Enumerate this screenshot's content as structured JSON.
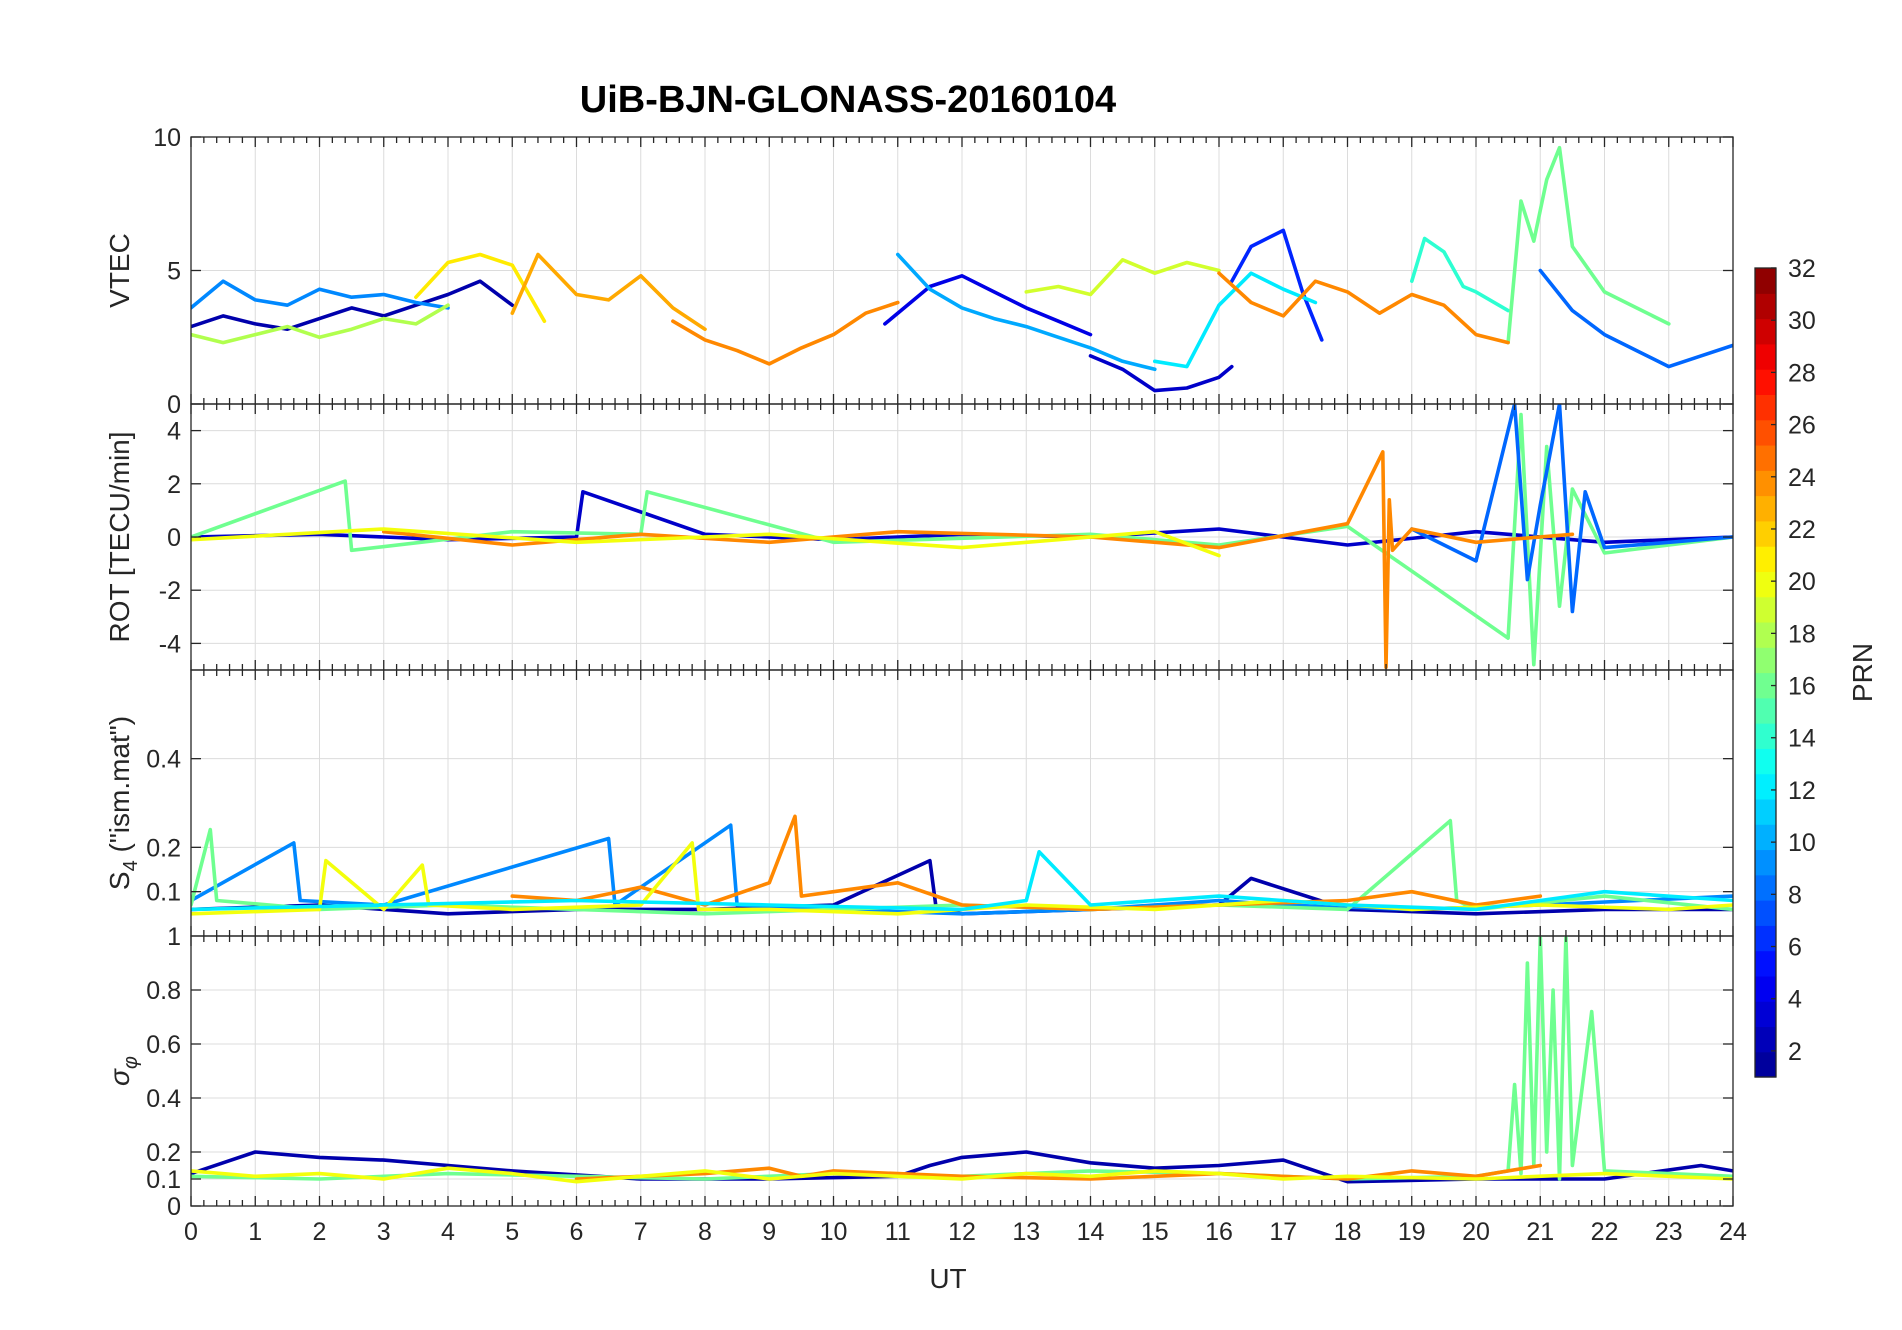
{
  "chart_data": {
    "type": "line",
    "title": "UiB-BJN-GLONASS-20160104",
    "xlabel": "UT",
    "xlim": [
      0,
      24
    ],
    "xticks": [
      0,
      1,
      2,
      3,
      4,
      5,
      6,
      7,
      8,
      9,
      10,
      11,
      12,
      13,
      14,
      15,
      16,
      17,
      18,
      19,
      20,
      21,
      22,
      23,
      24
    ],
    "colorbar": {
      "label": "PRN",
      "range": [
        1,
        32
      ],
      "ticks": [
        2,
        4,
        6,
        8,
        10,
        12,
        14,
        16,
        18,
        20,
        22,
        24,
        26,
        28,
        30,
        32
      ],
      "colormap": [
        "#00008F",
        "#0000FF",
        "#0080FF",
        "#00FFFF",
        "#80FF80",
        "#FFFF00",
        "#FF8000",
        "#FF0000",
        "#800000"
      ]
    },
    "panels": [
      {
        "id": "vtec",
        "ylabel": "VTEC",
        "ylim": [
          0,
          10
        ],
        "yticks": [
          0,
          5,
          10
        ],
        "ytick_labels": [
          "0",
          "5",
          "10"
        ],
        "series": [
          {
            "prn": 2,
            "x": [
              0,
              0.5,
              1,
              1.5,
              2,
              2.5,
              3,
              3.5,
              4,
              4.5,
              5
            ],
            "y": [
              2.9,
              3.3,
              3.0,
              2.8,
              3.2,
              3.6,
              3.3,
              3.7,
              4.1,
              4.6,
              3.7
            ]
          },
          {
            "prn": 4,
            "x": [
              10.8,
              11.5,
              12,
              12.5,
              13,
              13.5,
              14
            ],
            "y": [
              3.0,
              4.4,
              4.8,
              4.2,
              3.6,
              3.1,
              2.6
            ]
          },
          {
            "prn": 3,
            "x": [
              14,
              14.5,
              15,
              15.5,
              16,
              16.2
            ],
            "y": [
              1.8,
              1.3,
              0.5,
              0.6,
              1.0,
              1.4
            ]
          },
          {
            "prn": 6,
            "x": [
              16.2,
              16.5,
              17,
              17.3,
              17.6
            ],
            "y": [
              4.6,
              5.9,
              6.5,
              4.2,
              2.4
            ]
          },
          {
            "prn": 9,
            "x": [
              0,
              0.5,
              1,
              1.5,
              2,
              2.5,
              3,
              3.5,
              4
            ],
            "y": [
              3.6,
              4.6,
              3.9,
              3.7,
              4.3,
              4.0,
              4.1,
              3.8,
              3.6
            ]
          },
          {
            "prn": 8,
            "x": [
              21,
              21.5,
              22,
              22.5,
              23,
              23.5,
              24
            ],
            "y": [
              5.0,
              3.5,
              2.6,
              2.0,
              1.4,
              1.8,
              2.2
            ]
          },
          {
            "prn": 10,
            "x": [
              11,
              11.5,
              12,
              12.5,
              13,
              13.5,
              14,
              14.5,
              15
            ],
            "y": [
              5.6,
              4.3,
              3.6,
              3.2,
              2.9,
              2.5,
              2.1,
              1.6,
              1.3
            ]
          },
          {
            "prn": 12,
            "x": [
              15,
              15.5,
              16,
              16.5,
              17,
              17.5
            ],
            "y": [
              1.6,
              1.4,
              3.7,
              4.9,
              4.3,
              3.8
            ]
          },
          {
            "prn": 14,
            "x": [
              19,
              19.2,
              19.5,
              19.8,
              20,
              20.5
            ],
            "y": [
              4.6,
              6.2,
              5.7,
              4.4,
              4.2,
              3.5
            ]
          },
          {
            "prn": 16,
            "x": [
              20.5,
              20.7,
              20.9,
              21.1,
              21.3,
              21.5,
              22,
              22.5,
              23
            ],
            "y": [
              2.3,
              7.6,
              6.1,
              8.4,
              9.6,
              5.9,
              4.2,
              3.6,
              3.0
            ]
          },
          {
            "prn": 18,
            "x": [
              0,
              0.5,
              1,
              1.5,
              2,
              2.5,
              3,
              3.5,
              4
            ],
            "y": [
              2.6,
              2.3,
              2.6,
              2.9,
              2.5,
              2.8,
              3.2,
              3.0,
              3.7
            ]
          },
          {
            "prn": 19,
            "x": [
              13,
              13.5,
              14,
              14.5,
              15,
              15.5,
              16
            ],
            "y": [
              4.2,
              4.4,
              4.1,
              5.4,
              4.9,
              5.3,
              5.0
            ]
          },
          {
            "prn": 21,
            "x": [
              3.5,
              4,
              4.5,
              5,
              5.5
            ],
            "y": [
              4.0,
              5.3,
              5.6,
              5.2,
              3.1
            ]
          },
          {
            "prn": 23,
            "x": [
              5,
              5.4,
              6,
              6.5,
              7,
              7.5,
              8
            ],
            "y": [
              3.4,
              5.6,
              4.1,
              3.9,
              4.8,
              3.6,
              2.8
            ]
          },
          {
            "prn": 24,
            "x": [
              7.5,
              8,
              8.5,
              9,
              9.5,
              10,
              10.5,
              11
            ],
            "y": [
              3.1,
              2.4,
              2.0,
              1.5,
              2.1,
              2.6,
              3.4,
              3.8
            ]
          },
          {
            "prn": 24,
            "x": [
              16,
              16.5,
              17,
              17.5,
              18,
              18.5,
              19,
              19.5,
              20,
              20.5
            ],
            "y": [
              4.9,
              3.8,
              3.3,
              4.6,
              4.2,
              3.4,
              4.1,
              3.7,
              2.6,
              2.3
            ]
          }
        ]
      },
      {
        "id": "rot",
        "ylabel": "ROT [TECU/min]",
        "ylim": [
          -5,
          5
        ],
        "yticks": [
          -4,
          -2,
          0,
          2,
          4
        ],
        "ytick_labels": [
          "-4",
          "-2",
          "0",
          "2",
          "4"
        ],
        "series": [
          {
            "prn": 3,
            "x": [
              0,
              2,
              4,
              6,
              6.1,
              8,
              10,
              12,
              14,
              16,
              18,
              20,
              22,
              24
            ],
            "y": [
              0.0,
              0.1,
              -0.1,
              0.0,
              1.7,
              0.1,
              -0.1,
              0.1,
              0.0,
              0.3,
              -0.3,
              0.2,
              -0.2,
              0.0
            ]
          },
          {
            "prn": 16,
            "x": [
              0,
              2.4,
              2.5,
              5,
              7,
              7.1,
              10,
              14,
              16,
              18,
              20.5,
              20.7,
              20.9,
              21.1,
              21.3,
              21.5,
              22,
              24
            ],
            "y": [
              0.0,
              2.1,
              -0.5,
              0.2,
              0.1,
              1.7,
              -0.2,
              0.1,
              -0.3,
              0.4,
              -3.8,
              4.6,
              -4.8,
              3.4,
              -2.6,
              1.8,
              -0.6,
              0.0
            ]
          },
          {
            "prn": 8,
            "x": [
              19,
              20,
              20.6,
              20.8,
              21,
              21.3,
              21.5,
              21.7,
              22,
              24
            ],
            "y": [
              0.3,
              -0.9,
              5.0,
              -1.6,
              1.2,
              5.0,
              -2.8,
              1.7,
              -0.4,
              0.0
            ]
          },
          {
            "prn": 24,
            "x": [
              3,
              5,
              7,
              9,
              11,
              14,
              16,
              18,
              18.55,
              18.6,
              18.65,
              18.7,
              19,
              20,
              21.5
            ],
            "y": [
              0.2,
              -0.3,
              0.1,
              -0.2,
              0.2,
              0.0,
              -0.4,
              0.5,
              3.2,
              -4.9,
              1.4,
              -0.5,
              0.3,
              -0.2,
              0.1
            ]
          },
          {
            "prn": 20,
            "x": [
              0,
              3,
              6,
              9,
              12,
              15,
              16
            ],
            "y": [
              -0.1,
              0.3,
              -0.2,
              0.1,
              -0.4,
              0.2,
              -0.7
            ]
          }
        ]
      },
      {
        "id": "s4",
        "ylabel": "S4 (\"ism.mat\")",
        "ylim": [
          0,
          0.6
        ],
        "yticks": [
          0.1,
          0.2,
          0.4
        ],
        "ytick_labels": [
          "0.1",
          "0.2",
          "0.4"
        ],
        "series": [
          {
            "prn": 2,
            "x": [
              0,
              2,
              4,
              6,
              8,
              10,
              11.5,
              11.6,
              12,
              14,
              16,
              16.5,
              18,
              20,
              22,
              24
            ],
            "y": [
              0.06,
              0.07,
              0.05,
              0.06,
              0.06,
              0.07,
              0.17,
              0.06,
              0.05,
              0.06,
              0.07,
              0.13,
              0.06,
              0.05,
              0.06,
              0.06
            ]
          },
          {
            "prn": 9,
            "x": [
              0,
              1.6,
              1.7,
              3,
              6.5,
              6.6,
              8.4,
              8.5,
              10,
              12,
              14,
              16,
              17,
              19,
              21,
              24
            ],
            "y": [
              0.08,
              0.21,
              0.08,
              0.07,
              0.22,
              0.07,
              0.25,
              0.07,
              0.06,
              0.05,
              0.06,
              0.08,
              0.07,
              0.06,
              0.07,
              0.09
            ]
          },
          {
            "prn": 16,
            "x": [
              0,
              0.3,
              0.4,
              2,
              4,
              6,
              8,
              10,
              12,
              14,
              16,
              18,
              19.6,
              19.7,
              20,
              22,
              24
            ],
            "y": [
              0.07,
              0.24,
              0.08,
              0.06,
              0.07,
              0.06,
              0.05,
              0.06,
              0.07,
              0.06,
              0.07,
              0.06,
              0.26,
              0.08,
              0.06,
              0.09,
              0.06
            ]
          },
          {
            "prn": 24,
            "x": [
              5,
              6,
              7,
              8,
              9,
              9.4,
              9.5,
              10,
              11,
              12,
              14,
              16,
              18,
              19,
              20,
              21
            ],
            "y": [
              0.09,
              0.08,
              0.11,
              0.07,
              0.12,
              0.27,
              0.09,
              0.1,
              0.12,
              0.07,
              0.06,
              0.07,
              0.08,
              0.1,
              0.07,
              0.09
            ]
          },
          {
            "prn": 20,
            "x": [
              0,
              2,
              2.1,
              3,
              3.6,
              3.7,
              5,
              7,
              7.8,
              7.9,
              9,
              11,
              13,
              15,
              17,
              19,
              21,
              23,
              24
            ],
            "y": [
              0.05,
              0.06,
              0.17,
              0.06,
              0.16,
              0.07,
              0.06,
              0.07,
              0.21,
              0.06,
              0.06,
              0.05,
              0.07,
              0.06,
              0.08,
              0.06,
              0.07,
              0.06,
              0.07
            ]
          },
          {
            "prn": 12,
            "x": [
              0,
              3,
              6,
              9,
              12,
              13,
              13.2,
              14,
              16,
              18,
              20,
              22,
              24
            ],
            "y": [
              0.06,
              0.07,
              0.08,
              0.07,
              0.06,
              0.08,
              0.19,
              0.07,
              0.09,
              0.07,
              0.06,
              0.1,
              0.08
            ]
          }
        ]
      },
      {
        "id": "sigma_phi",
        "ylabel": "σφ",
        "ylim": [
          0,
          1
        ],
        "yticks": [
          0,
          0.1,
          0.2,
          0.4,
          0.6,
          0.8
        ],
        "ytick_labels": [
          "0",
          "0.1",
          "0.2",
          "0.4",
          "0.6",
          "0.8"
        ],
        "series": [
          {
            "prn": 2,
            "x": [
              0,
              1,
              2,
              3,
              4,
              5,
              7,
              9,
              11,
              11.5,
              12,
              13,
              14,
              15,
              16,
              17,
              18,
              20,
              22,
              23.5,
              24
            ],
            "y": [
              0.12,
              0.2,
              0.18,
              0.17,
              0.15,
              0.13,
              0.1,
              0.1,
              0.11,
              0.15,
              0.18,
              0.2,
              0.16,
              0.14,
              0.15,
              0.17,
              0.09,
              0.1,
              0.1,
              0.15,
              0.13
            ]
          },
          {
            "prn": 16,
            "x": [
              0,
              2,
              4,
              6,
              8,
              10,
              12,
              14,
              16,
              18,
              20,
              20.5,
              20.6,
              20.7,
              20.8,
              20.9,
              21.0,
              21.1,
              21.2,
              21.3,
              21.4,
              21.5,
              21.8,
              22,
              24
            ],
            "y": [
              0.11,
              0.1,
              0.12,
              0.11,
              0.1,
              0.12,
              0.11,
              0.13,
              0.12,
              0.1,
              0.11,
              0.13,
              0.45,
              0.12,
              0.9,
              0.15,
              1.0,
              0.2,
              0.8,
              0.1,
              1.0,
              0.15,
              0.72,
              0.13,
              0.11
            ]
          },
          {
            "prn": 24,
            "x": [
              6,
              8,
              9,
              9.5,
              10,
              12,
              14,
              16,
              18,
              19,
              20,
              21
            ],
            "y": [
              0.1,
              0.12,
              0.14,
              0.11,
              0.13,
              0.11,
              0.1,
              0.12,
              0.1,
              0.13,
              0.11,
              0.15
            ]
          },
          {
            "prn": 20,
            "x": [
              0,
              1,
              2,
              3,
              4,
              5,
              6,
              7,
              8,
              9,
              10,
              11,
              12,
              13,
              14,
              15,
              16,
              17,
              18,
              20,
              22,
              24
            ],
            "y": [
              0.13,
              0.11,
              0.12,
              0.1,
              0.14,
              0.12,
              0.09,
              0.11,
              0.13,
              0.1,
              0.12,
              0.11,
              0.1,
              0.12,
              0.11,
              0.13,
              0.12,
              0.1,
              0.11,
              0.1,
              0.12,
              0.1
            ]
          }
        ]
      }
    ]
  }
}
